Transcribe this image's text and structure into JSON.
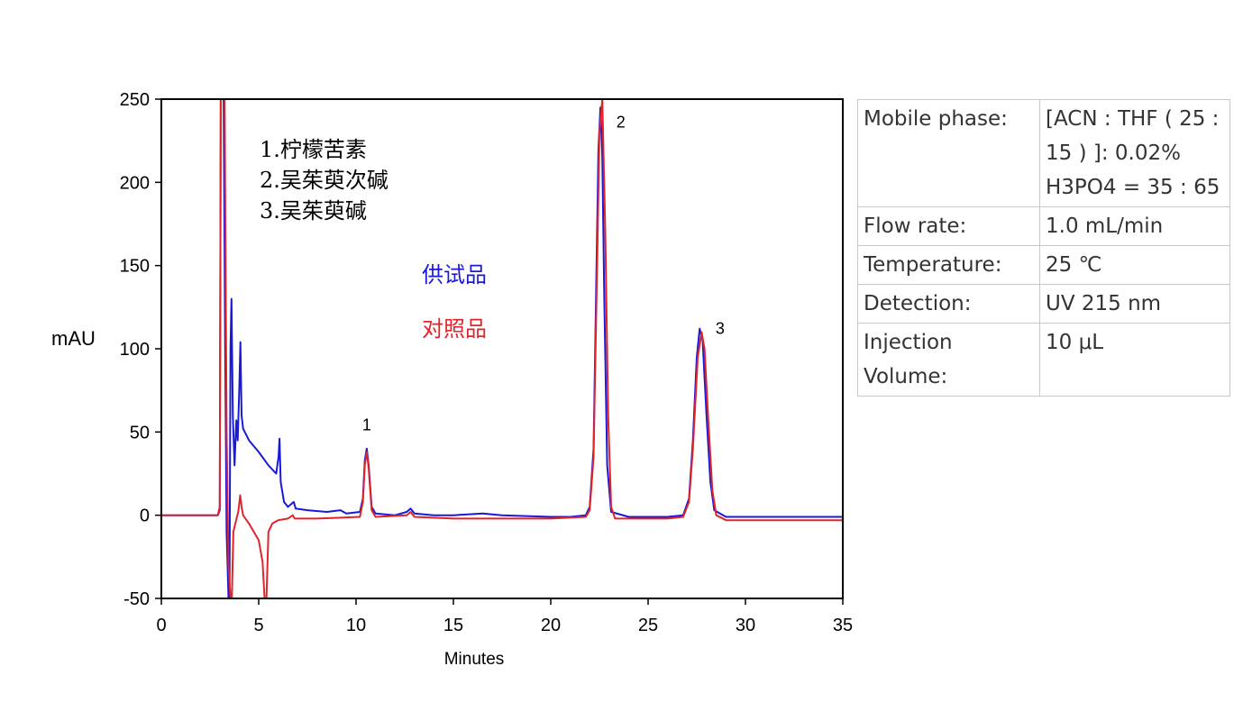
{
  "chart_data": {
    "type": "line",
    "xlabel": "Minutes",
    "ylabel": "mAU",
    "xlim": [
      0,
      35
    ],
    "ylim": [
      -50,
      250
    ],
    "x_ticks": [
      0,
      5,
      10,
      15,
      20,
      25,
      30,
      35
    ],
    "y_ticks": [
      250,
      200,
      150,
      100,
      50,
      0,
      -50
    ],
    "legend": [
      "供试品",
      "对照品"
    ],
    "compounds": [
      "1.柠檬苦素",
      "2.吴茱萸次碱",
      "3.吴茱萸碱"
    ],
    "peak_labels": [
      {
        "text": "1",
        "x": 10.55,
        "y": 51
      },
      {
        "text": "2",
        "x": 23.6,
        "y": 233
      },
      {
        "text": "3",
        "x": 28.7,
        "y": 109
      }
    ],
    "series": [
      {
        "name": "供试品",
        "color": "#1a1ad6",
        "points": [
          [
            0,
            0
          ],
          [
            2.9,
            0
          ],
          [
            3.0,
            3
          ],
          [
            3.05,
            250
          ],
          [
            3.2,
            250
          ],
          [
            3.28,
            100
          ],
          [
            3.35,
            -10
          ],
          [
            3.45,
            -50
          ],
          [
            3.5,
            -50
          ],
          [
            3.55,
            100
          ],
          [
            3.6,
            130
          ],
          [
            3.67,
            60
          ],
          [
            3.76,
            30
          ],
          [
            3.85,
            57
          ],
          [
            3.92,
            45
          ],
          [
            4.0,
            75
          ],
          [
            4.06,
            104
          ],
          [
            4.12,
            60
          ],
          [
            4.2,
            52
          ],
          [
            4.5,
            45
          ],
          [
            5.0,
            38
          ],
          [
            5.5,
            30
          ],
          [
            5.9,
            25
          ],
          [
            6.02,
            35
          ],
          [
            6.07,
            46
          ],
          [
            6.13,
            20
          ],
          [
            6.3,
            8
          ],
          [
            6.5,
            5
          ],
          [
            6.7,
            7
          ],
          [
            6.8,
            8
          ],
          [
            6.9,
            4
          ],
          [
            7.5,
            3
          ],
          [
            8.5,
            2
          ],
          [
            9.2,
            3
          ],
          [
            9.5,
            1
          ],
          [
            10.2,
            2
          ],
          [
            10.35,
            10
          ],
          [
            10.45,
            33
          ],
          [
            10.55,
            40
          ],
          [
            10.65,
            30
          ],
          [
            10.8,
            5
          ],
          [
            11.0,
            1
          ],
          [
            12.0,
            0
          ],
          [
            12.6,
            2
          ],
          [
            12.8,
            4
          ],
          [
            13.0,
            1
          ],
          [
            14.0,
            0
          ],
          [
            15.0,
            0
          ],
          [
            16.5,
            1
          ],
          [
            17.5,
            0
          ],
          [
            20.0,
            -1
          ],
          [
            21.0,
            -1
          ],
          [
            21.8,
            0
          ],
          [
            22.0,
            5
          ],
          [
            22.2,
            40
          ],
          [
            22.35,
            150
          ],
          [
            22.45,
            220
          ],
          [
            22.55,
            245
          ],
          [
            22.65,
            215
          ],
          [
            22.75,
            130
          ],
          [
            22.9,
            30
          ],
          [
            23.1,
            2
          ],
          [
            24.0,
            -1
          ],
          [
            26.0,
            -1
          ],
          [
            26.8,
            0
          ],
          [
            27.1,
            10
          ],
          [
            27.3,
            45
          ],
          [
            27.5,
            95
          ],
          [
            27.65,
            112
          ],
          [
            27.8,
            105
          ],
          [
            28.0,
            60
          ],
          [
            28.2,
            20
          ],
          [
            28.4,
            3
          ],
          [
            29.0,
            -1
          ],
          [
            31.0,
            -1
          ],
          [
            35.0,
            -1
          ]
        ]
      },
      {
        "name": "对照品",
        "color": "#e0242a",
        "points": [
          [
            0,
            0
          ],
          [
            2.9,
            0
          ],
          [
            3.0,
            5
          ],
          [
            3.05,
            250
          ],
          [
            3.25,
            250
          ],
          [
            3.35,
            50
          ],
          [
            3.45,
            -30
          ],
          [
            3.55,
            -50
          ],
          [
            3.62,
            -50
          ],
          [
            3.7,
            -10
          ],
          [
            3.8,
            -5
          ],
          [
            3.95,
            2
          ],
          [
            4.05,
            12
          ],
          [
            4.12,
            5
          ],
          [
            4.2,
            0
          ],
          [
            4.5,
            -5
          ],
          [
            5.0,
            -15
          ],
          [
            5.2,
            -28
          ],
          [
            5.3,
            -50
          ],
          [
            5.4,
            -50
          ],
          [
            5.5,
            -10
          ],
          [
            5.7,
            -5
          ],
          [
            6.0,
            -3
          ],
          [
            6.5,
            -2
          ],
          [
            6.75,
            0
          ],
          [
            6.85,
            -2
          ],
          [
            8.0,
            -2
          ],
          [
            10.2,
            -1
          ],
          [
            10.35,
            8
          ],
          [
            10.45,
            30
          ],
          [
            10.55,
            38
          ],
          [
            10.65,
            28
          ],
          [
            10.8,
            3
          ],
          [
            11.0,
            -1
          ],
          [
            12.6,
            0
          ],
          [
            12.8,
            2
          ],
          [
            13.0,
            -1
          ],
          [
            15.0,
            -2
          ],
          [
            20.0,
            -2
          ],
          [
            21.8,
            -1
          ],
          [
            22.0,
            3
          ],
          [
            22.2,
            35
          ],
          [
            22.4,
            160
          ],
          [
            22.5,
            230
          ],
          [
            22.65,
            250
          ],
          [
            22.8,
            170
          ],
          [
            22.95,
            60
          ],
          [
            23.1,
            5
          ],
          [
            23.3,
            -2
          ],
          [
            26.0,
            -2
          ],
          [
            26.8,
            -1
          ],
          [
            27.1,
            8
          ],
          [
            27.3,
            40
          ],
          [
            27.55,
            95
          ],
          [
            27.75,
            110
          ],
          [
            27.9,
            100
          ],
          [
            28.1,
            55
          ],
          [
            28.3,
            15
          ],
          [
            28.5,
            0
          ],
          [
            29.0,
            -3
          ],
          [
            35.0,
            -3
          ]
        ]
      }
    ]
  },
  "conditions": {
    "rows": [
      {
        "label": "Mobile phase:",
        "value": "[ACN : THF ( 25 : 15 ) ]: 0.02% H3PO4 = 35 : 65"
      },
      {
        "label": "Flow rate:",
        "value": "1.0 mL/min"
      },
      {
        "label": "Temperature:",
        "value": "25 ℃"
      },
      {
        "label": "Detection:",
        "value": "UV 215 nm"
      },
      {
        "label": "Injection Volume:",
        "value": "10 μL"
      }
    ]
  }
}
